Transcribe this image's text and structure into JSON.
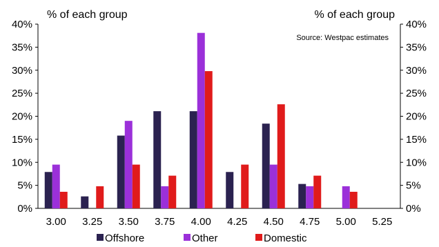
{
  "chart_data": {
    "type": "bar",
    "left_axis_unit": "% of each group",
    "right_axis_unit": "% of each group",
    "source": "Source: Westpac estimates",
    "categories": [
      "3.00",
      "3.25",
      "3.50",
      "3.75",
      "4.00",
      "4.25",
      "4.50",
      "4.75",
      "5.00",
      "5.25"
    ],
    "ylim": [
      0,
      40
    ],
    "yticks": [
      "0%",
      "5%",
      "10%",
      "15%",
      "20%",
      "25%",
      "30%",
      "35%",
      "40%"
    ],
    "legend_position": "bottom",
    "grid": false,
    "series": [
      {
        "name": "Offshore",
        "color": "#2b2250",
        "values": [
          7.9,
          2.6,
          15.8,
          21.1,
          21.1,
          7.9,
          18.4,
          5.3,
          0,
          0
        ]
      },
      {
        "name": "Other",
        "color": "#9b30d9",
        "values": [
          9.5,
          0,
          19.0,
          4.8,
          38.1,
          0,
          9.5,
          4.8,
          4.8,
          0
        ]
      },
      {
        "name": "Domestic",
        "color": "#e01b1b",
        "values": [
          3.6,
          4.8,
          9.5,
          7.1,
          29.8,
          9.5,
          22.6,
          7.1,
          3.6,
          0
        ]
      }
    ]
  }
}
